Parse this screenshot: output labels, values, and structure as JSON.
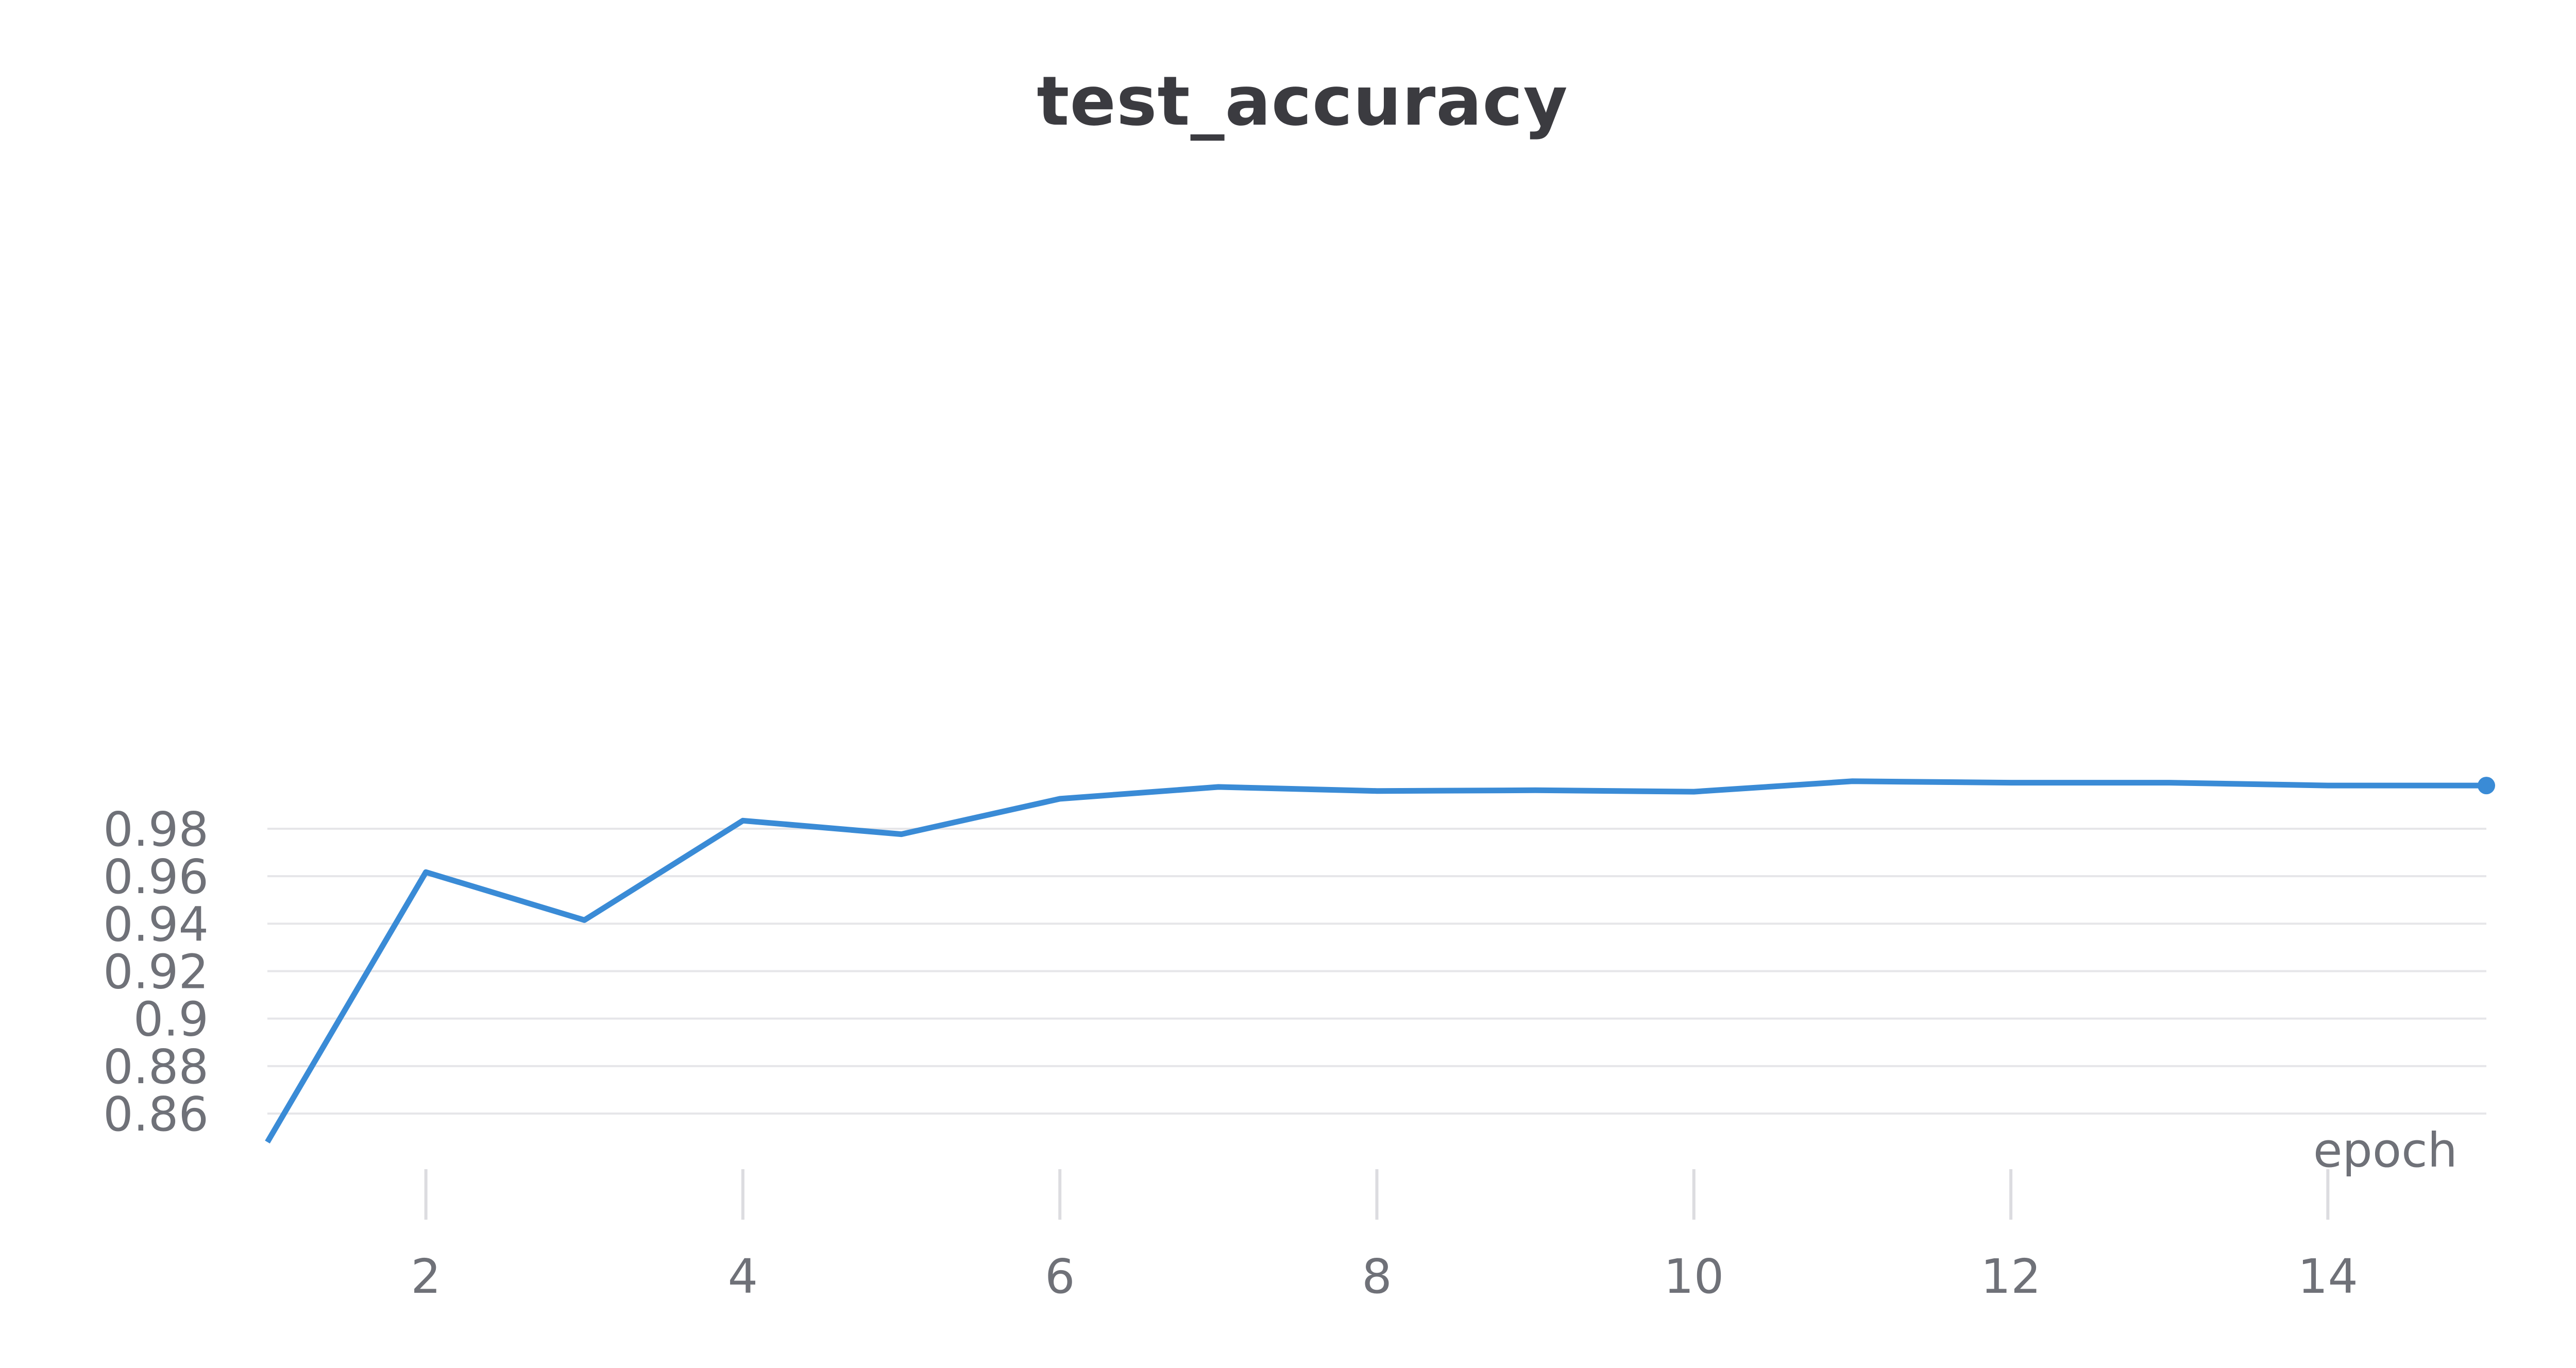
{
  "chart_data": {
    "type": "line",
    "title": "test_accuracy",
    "xlabel": "epoch",
    "ylabel": "",
    "xlim": [
      1,
      15
    ],
    "ylim": [
      0.848,
      0.992
    ],
    "x_ticks": [
      2,
      4,
      6,
      8,
      10,
      12,
      14
    ],
    "y_ticks": [
      0.86,
      0.88,
      0.9,
      0.92,
      0.94,
      0.96,
      0.98
    ],
    "y_tick_labels": [
      "0.86",
      "0.88",
      "0.9",
      "0.92",
      "0.94",
      "0.96",
      "0.98"
    ],
    "grid": "horizontal",
    "series": [
      {
        "color": "#3a8bd6",
        "x": [
          1,
          2,
          3,
          4,
          5,
          6,
          7,
          8,
          9,
          10,
          11,
          12,
          13,
          14,
          15
        ],
        "y": [
          0.848,
          0.9617,
          0.9415,
          0.9834,
          0.9777,
          0.9926,
          0.9976,
          0.9959,
          0.9962,
          0.9956,
          1.0,
          0.9994,
          0.9994,
          0.9982,
          0.9982
        ]
      }
    ],
    "end_marker": true
  },
  "colors": {
    "line": "#3a8bd6",
    "grid": "#e6e6e9",
    "tick_mark": "#dcdce0",
    "text": "#6f7178",
    "title": "#3b3b40"
  }
}
